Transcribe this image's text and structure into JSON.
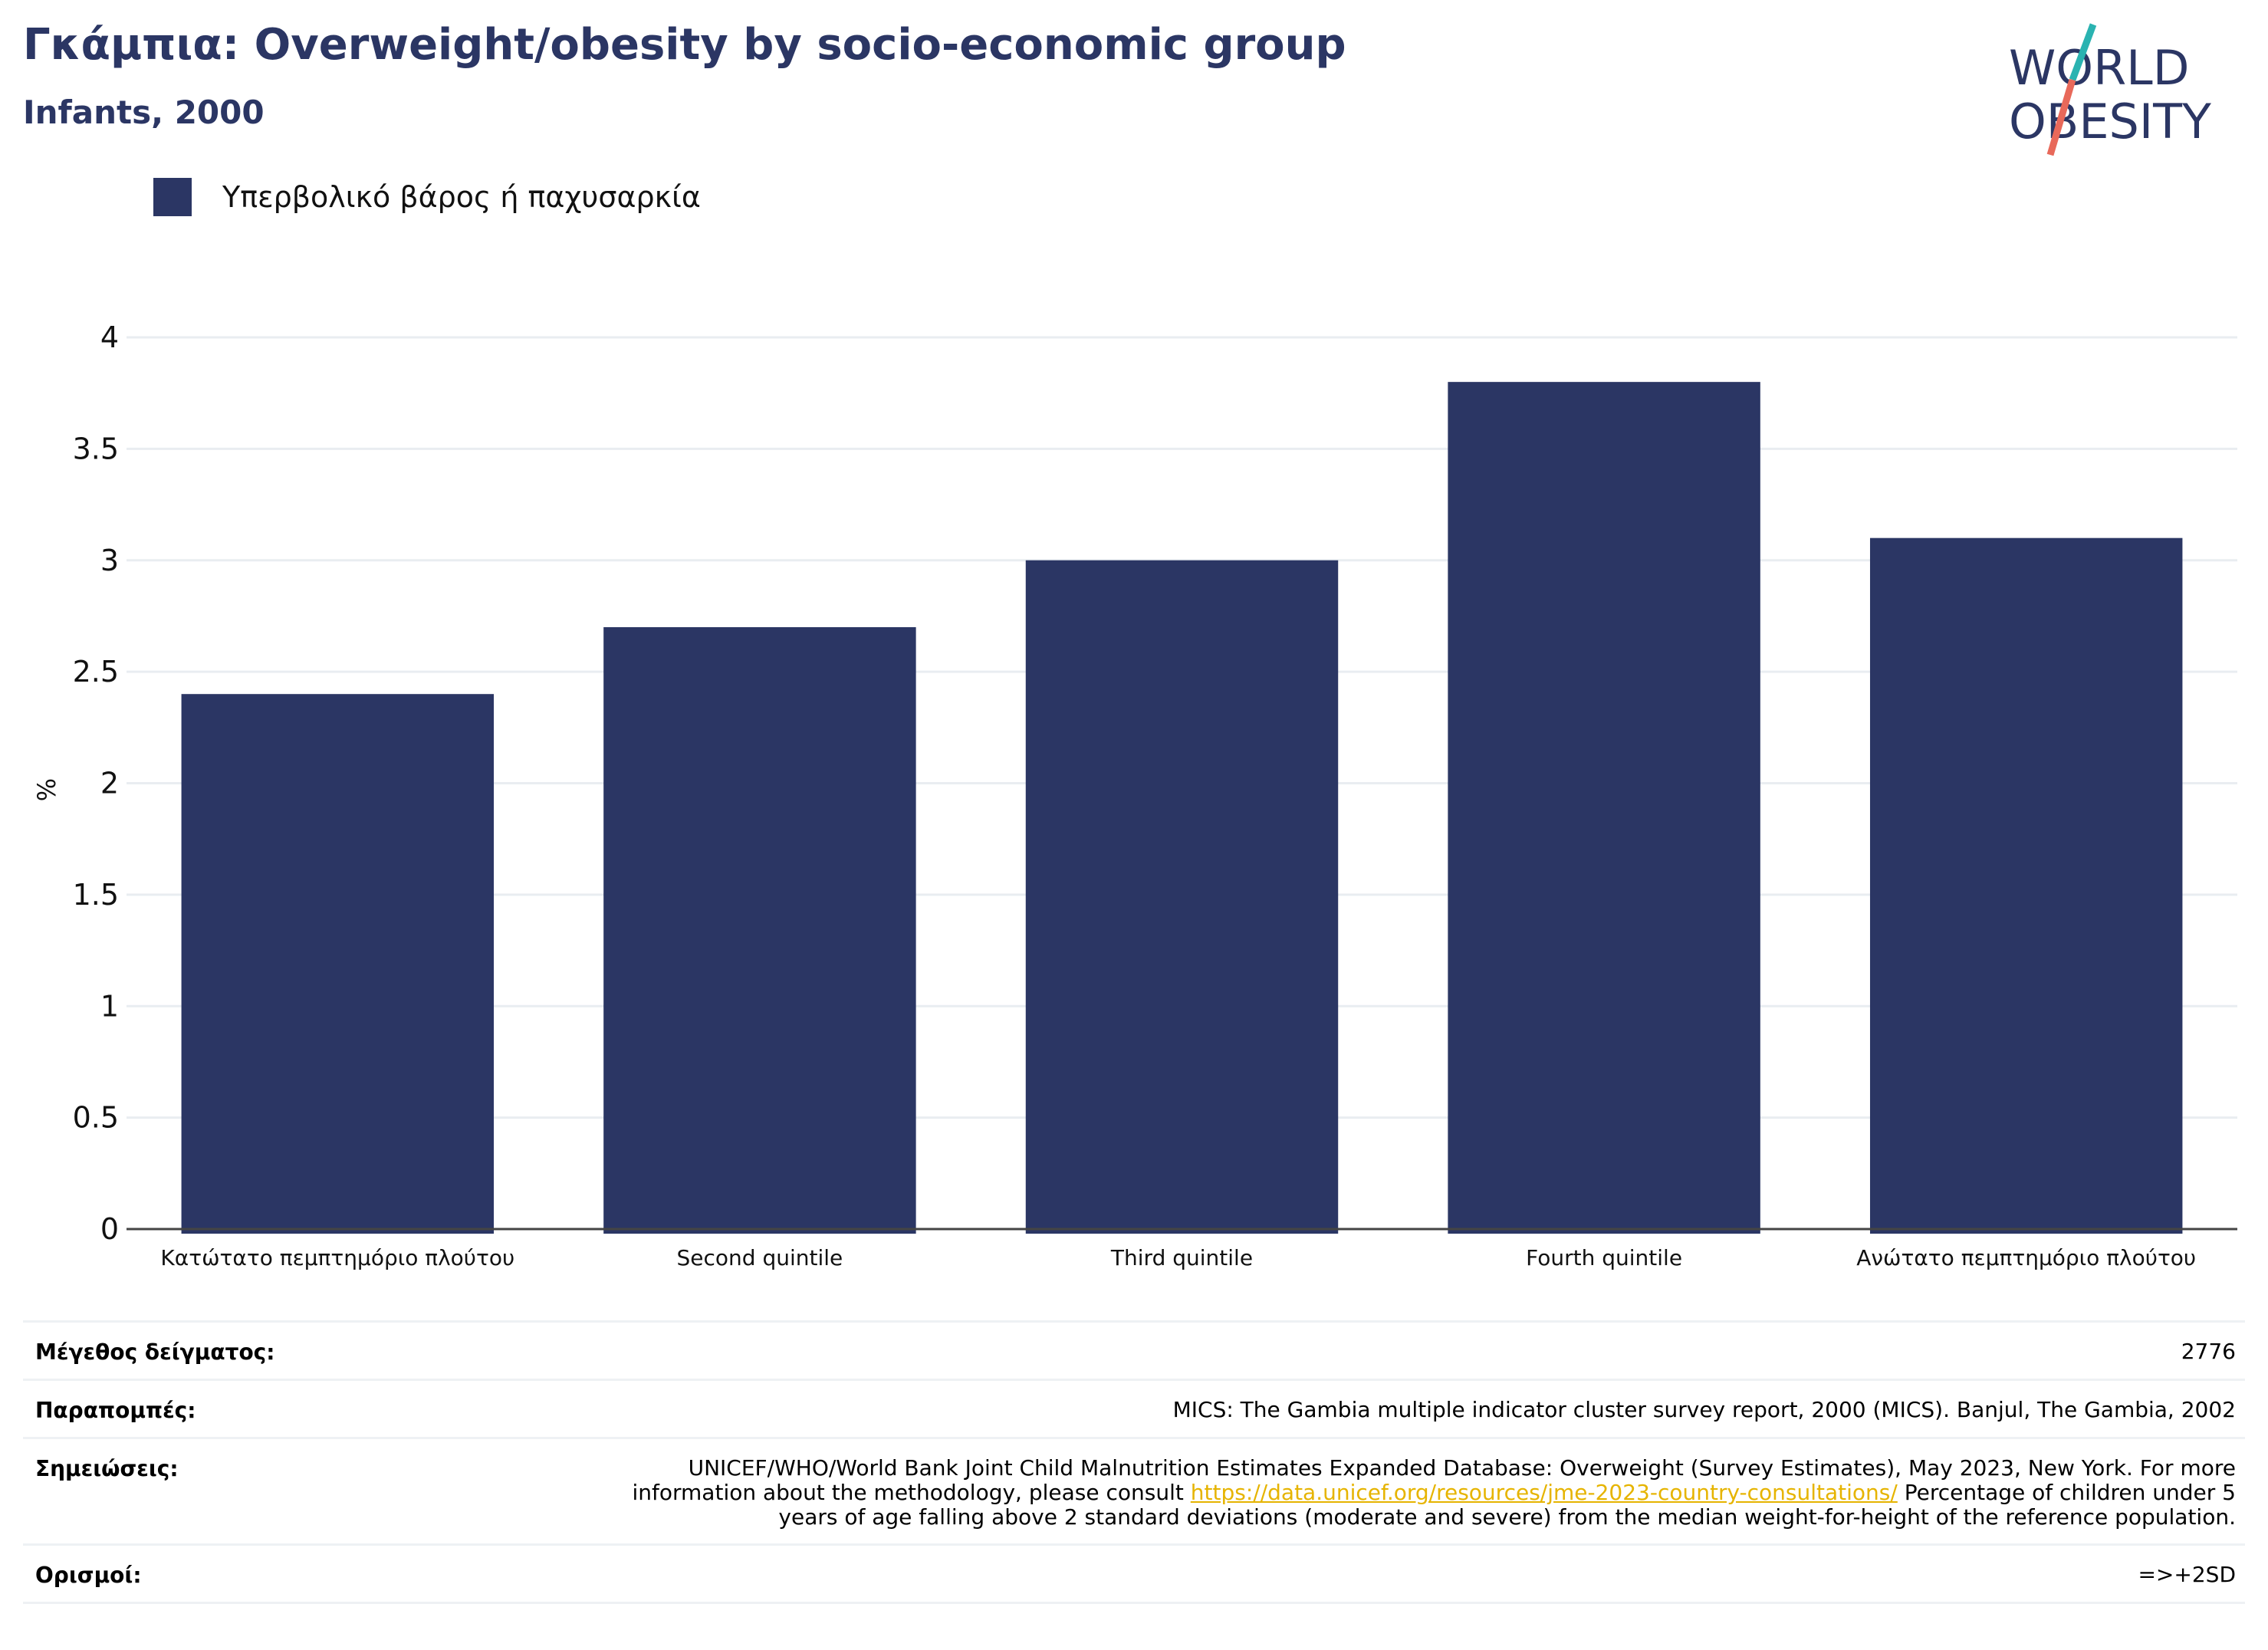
{
  "header": {
    "title": "Γκάμπια: Overweight/obesity by socio-economic group",
    "subtitle": "Infants, 2000"
  },
  "logo": {
    "line1": "WORLD",
    "line2": "OBESITY"
  },
  "colors": {
    "bar": "#2b3664",
    "accent_teal": "#2ab3b1",
    "accent_red": "#e8695a",
    "link": "#e6b400"
  },
  "chart_data": {
    "type": "bar",
    "categories": [
      "Κατώτατο πεμπτημόριο πλούτου",
      "Second quintile",
      "Third quintile",
      "Fourth quintile",
      "Ανώτατο πεμπτημόριο πλούτου"
    ],
    "series": [
      {
        "name": "Υπερβολικό βάρος ή παχυσαρκία",
        "values": [
          2.4,
          2.7,
          3.0,
          3.8,
          3.1
        ]
      }
    ],
    "ylabel": "%",
    "ylim": [
      0,
      4
    ],
    "yticks": [
      0,
      0.5,
      1,
      1.5,
      2,
      2.5,
      3,
      3.5,
      4
    ],
    "ytick_labels": [
      "0",
      "0.5",
      "1",
      "1.5",
      "2",
      "2.5",
      "3",
      "3.5",
      "4"
    ],
    "grid": true,
    "legend_position": "top-left"
  },
  "meta": {
    "sample_label": "Μέγεθος δείγματος:",
    "sample_value": "2776",
    "refs_label": "Παραπομπές:",
    "refs_value": "MICS: The Gambia multiple indicator cluster survey report, 2000 (MICS). Banjul, The Gambia, 2002",
    "notes_label": "Σημειώσεις:",
    "notes_before": "UNICEF/WHO/World Bank Joint Child Malnutrition Estimates Expanded Database: Overweight (Survey Estimates), May 2023, New York. For more information about the methodology, please consult",
    "notes_link": "https://data.unicef.org/resources/jme-2023-country-consultations/",
    "notes_after": "Percentage of children under 5 years of age falling above 2 standard deviations (moderate and severe) from the median weight-for-height of the reference population.",
    "defs_label": "Ορισμοί:",
    "defs_value": "=>+2SD"
  }
}
